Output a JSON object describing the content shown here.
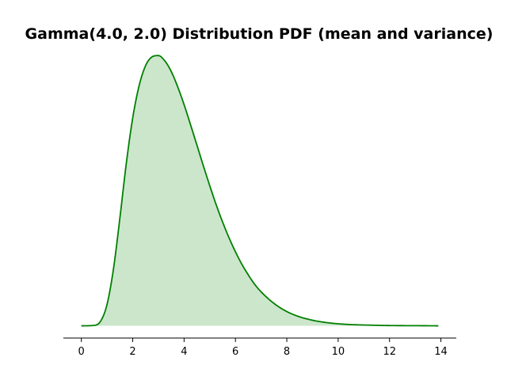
{
  "chart_data": {
    "type": "area",
    "title": "Gamma(4.0, 2.0) Distribution PDF (mean and variance)",
    "xlabel": "",
    "ylabel": "",
    "xlim": [
      -0.7,
      14.6
    ],
    "ylim": [
      -0.009,
      0.206
    ],
    "x_ticks": [
      0,
      2,
      4,
      6,
      8,
      10,
      12,
      14
    ],
    "x_tick_labels": [
      "0",
      "2",
      "4",
      "6",
      "8",
      "10",
      "12",
      "14"
    ],
    "y_axis_visible": false,
    "grid": false,
    "legend": "none",
    "line_color": "#008000",
    "fill_color": "#008000",
    "fill_opacity": 0.2,
    "series": [
      {
        "x": [
          0,
          0.5,
          0.75,
          1,
          1.25,
          1.5,
          1.75,
          2,
          2.25,
          2.5,
          2.75,
          3,
          3.25,
          3.5,
          3.75,
          4,
          4.25,
          4.5,
          4.75,
          5,
          5.25,
          5.5,
          5.75,
          6,
          6.25,
          6.5,
          6.75,
          7,
          7.5,
          8,
          8.5,
          9,
          9.5,
          10,
          10.5,
          11,
          12,
          13,
          13.9
        ],
        "y": [
          0,
          0.0003,
          0.0034,
          0.0157,
          0.0418,
          0.0792,
          0.1195,
          0.153,
          0.1768,
          0.1914,
          0.1979,
          0.1989,
          0.195,
          0.1872,
          0.176,
          0.1628,
          0.1481,
          0.133,
          0.1178,
          0.1031,
          0.0891,
          0.0764,
          0.0648,
          0.0545,
          0.0453,
          0.0375,
          0.0305,
          0.025,
          0.0165,
          0.0105,
          0.0066,
          0.0041,
          0.0025,
          0.0015,
          0.0009,
          0.0006,
          0.0002,
          0.0001,
          0
        ]
      }
    ]
  }
}
